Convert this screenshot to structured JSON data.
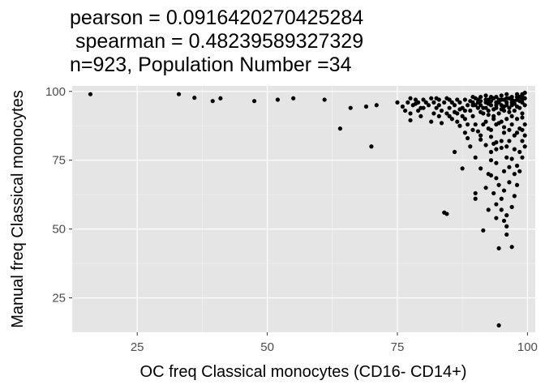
{
  "chart_data": {
    "type": "scatter",
    "title_lines": [
      "pearson = 0.0916420270425284",
      " spearman = 0.48239589327329",
      "n=923, Population Number =34"
    ],
    "xlabel": "OC freq Classical monocytes (CD16- CD14+)",
    "ylabel": "Manual freq Classical monocytes",
    "xlim": [
      12.5,
      101.5
    ],
    "ylim": [
      12.5,
      102
    ],
    "x_ticks": [
      25,
      50,
      75,
      100
    ],
    "y_ticks": [
      25,
      50,
      75,
      100
    ],
    "grid": true,
    "point_color": "#000000",
    "panel_background": "#e5e5e5",
    "points": [
      [
        16,
        99
      ],
      [
        33,
        99
      ],
      [
        36,
        97.7
      ],
      [
        39.5,
        96.5
      ],
      [
        41,
        97.5
      ],
      [
        47.5,
        96.5
      ],
      [
        52,
        97
      ],
      [
        55,
        97.5
      ],
      [
        61,
        97
      ],
      [
        64,
        86.5
      ],
      [
        66,
        94
      ],
      [
        69,
        94.5
      ],
      [
        70,
        80
      ],
      [
        71,
        95
      ],
      [
        75,
        96
      ],
      [
        76.5,
        93
      ],
      [
        77,
        96
      ],
      [
        77.5,
        89.5
      ],
      [
        77.5,
        92
      ],
      [
        78,
        95
      ],
      [
        78.5,
        97
      ],
      [
        79,
        93
      ],
      [
        79,
        96
      ],
      [
        79.5,
        91
      ],
      [
        80,
        94
      ],
      [
        80.5,
        96
      ],
      [
        81,
        95
      ],
      [
        81.5,
        89
      ],
      [
        82,
        92
      ],
      [
        82,
        96
      ],
      [
        82.5,
        94
      ],
      [
        83,
        91
      ],
      [
        83,
        95
      ],
      [
        83.5,
        88.5
      ],
      [
        83.5,
        93
      ],
      [
        84,
        96
      ],
      [
        84,
        56
      ],
      [
        84.5,
        55.5
      ],
      [
        84.5,
        92
      ],
      [
        85,
        94
      ],
      [
        85,
        97
      ],
      [
        85.5,
        90
      ],
      [
        86,
        95
      ],
      [
        86,
        78
      ],
      [
        86.5,
        92
      ],
      [
        87,
        87.5
      ],
      [
        87,
        96
      ],
      [
        87.5,
        72
      ],
      [
        87.5,
        94
      ],
      [
        88,
        90
      ],
      [
        88,
        97
      ],
      [
        88.5,
        83
      ],
      [
        88.5,
        95
      ],
      [
        89,
        93
      ],
      [
        89,
        80
      ],
      [
        89.5,
        91
      ],
      [
        89.5,
        96
      ],
      [
        89.5,
        98
      ],
      [
        90,
        88
      ],
      [
        90,
        63
      ],
      [
        90,
        61
      ],
      [
        90.5,
        94
      ],
      [
        90.5,
        97
      ],
      [
        91,
        84
      ],
      [
        91,
        95
      ],
      [
        91,
        98
      ],
      [
        91.5,
        92
      ],
      [
        91.5,
        49.5
      ],
      [
        92,
        89
      ],
      [
        92,
        96
      ],
      [
        92,
        98.5
      ],
      [
        92.5,
        70
      ],
      [
        92.5,
        57
      ],
      [
        92.5,
        93
      ],
      [
        92.5,
        97
      ],
      [
        93,
        86
      ],
      [
        93,
        95
      ],
      [
        93,
        78
      ],
      [
        93,
        69.5
      ],
      [
        93.5,
        91
      ],
      [
        93.5,
        97.5
      ],
      [
        93.5,
        81
      ],
      [
        94,
        94
      ],
      [
        94,
        98
      ],
      [
        94,
        88
      ],
      [
        94,
        54
      ],
      [
        94,
        74
      ],
      [
        94,
        79
      ],
      [
        94.5,
        15
      ],
      [
        94.5,
        92
      ],
      [
        94.5,
        96
      ],
      [
        94.5,
        43
      ],
      [
        94.5,
        66
      ],
      [
        95,
        89
      ],
      [
        95,
        95
      ],
      [
        95,
        98.5
      ],
      [
        95,
        61
      ],
      [
        95,
        82
      ],
      [
        95.5,
        93
      ],
      [
        95.5,
        97
      ],
      [
        95.5,
        85
      ],
      [
        95.5,
        53
      ],
      [
        96,
        90
      ],
      [
        96,
        96
      ],
      [
        96,
        99
      ],
      [
        96,
        55
      ],
      [
        96,
        48
      ],
      [
        96,
        76
      ],
      [
        96.5,
        94
      ],
      [
        96.5,
        97.5
      ],
      [
        96.5,
        82
      ],
      [
        97,
        91
      ],
      [
        97,
        95
      ],
      [
        97,
        98
      ],
      [
        97,
        43.5
      ],
      [
        97,
        88
      ],
      [
        97.5,
        93
      ],
      [
        97.5,
        96.5
      ],
      [
        97.5,
        79
      ],
      [
        97.5,
        62
      ],
      [
        98,
        90
      ],
      [
        98,
        97
      ],
      [
        98,
        99
      ],
      [
        98,
        85
      ],
      [
        98.5,
        94
      ],
      [
        98.5,
        98
      ],
      [
        98.5,
        78
      ],
      [
        99,
        92
      ],
      [
        99,
        96
      ],
      [
        99,
        99
      ],
      [
        99,
        82
      ],
      [
        99.5,
        95
      ],
      [
        99.5,
        99.5
      ],
      [
        99.5,
        88
      ],
      [
        90.5,
        96
      ],
      [
        91.5,
        94
      ],
      [
        92.5,
        95.5
      ],
      [
        93.5,
        93.5
      ],
      [
        94.5,
        97
      ],
      [
        95.5,
        94.5
      ],
      [
        96.5,
        92.5
      ],
      [
        97.5,
        95.5
      ],
      [
        98.5,
        96.5
      ],
      [
        99.5,
        97.5
      ],
      [
        91,
        92.5
      ],
      [
        92,
        94
      ],
      [
        93,
        96.5
      ],
      [
        94,
        95
      ],
      [
        95,
        93.5
      ],
      [
        96,
        97.5
      ],
      [
        97,
        96
      ],
      [
        98,
        94.5
      ],
      [
        99,
        98.5
      ],
      [
        90,
        95
      ],
      [
        88,
        93
      ],
      [
        86.5,
        97
      ],
      [
        85.5,
        96
      ],
      [
        84.5,
        97.5
      ],
      [
        83,
        97
      ],
      [
        82.5,
        97.5
      ],
      [
        81.5,
        97.5
      ],
      [
        80,
        97
      ],
      [
        79.5,
        94
      ],
      [
        78.5,
        95.5
      ],
      [
        77.5,
        97.5
      ],
      [
        76,
        94.5
      ],
      [
        89,
        96.5
      ],
      [
        89.5,
        95
      ],
      [
        90,
        97.5
      ],
      [
        91,
        96.5
      ],
      [
        92,
        97
      ],
      [
        93,
        98
      ],
      [
        94,
        96
      ],
      [
        95,
        97
      ],
      [
        96,
        95
      ],
      [
        97,
        97
      ],
      [
        98,
        98
      ],
      [
        99,
        97
      ],
      [
        92.5,
        91.5
      ],
      [
        93.5,
        90
      ],
      [
        94.5,
        88.5
      ],
      [
        95.5,
        87
      ],
      [
        96.5,
        86
      ],
      [
        97.5,
        84
      ],
      [
        98.5,
        86.5
      ],
      [
        99,
        90.5
      ],
      [
        91.5,
        88
      ],
      [
        92.5,
        86.5
      ],
      [
        93,
        83.5
      ],
      [
        94,
        81.5
      ],
      [
        95,
        79.5
      ],
      [
        96,
        80
      ],
      [
        97,
        75.5
      ],
      [
        98,
        73
      ],
      [
        97.5,
        70
      ],
      [
        96.5,
        72.5
      ],
      [
        95.5,
        71
      ],
      [
        94,
        68.5
      ],
      [
        93,
        75
      ],
      [
        92,
        80.5
      ],
      [
        91,
        82.5
      ],
      [
        90.5,
        85.5
      ],
      [
        89.5,
        86
      ],
      [
        88.5,
        88
      ],
      [
        87.5,
        91
      ],
      [
        87,
        93.5
      ],
      [
        86,
        92.5
      ],
      [
        85,
        91
      ],
      [
        86.5,
        89
      ],
      [
        88,
        85
      ],
      [
        94,
        59
      ],
      [
        95,
        57
      ],
      [
        96,
        51
      ],
      [
        95.5,
        64
      ],
      [
        93.5,
        63
      ],
      [
        92,
        65
      ],
      [
        91,
        72
      ],
      [
        90,
        76
      ],
      [
        96.5,
        67
      ],
      [
        97,
        58
      ],
      [
        98,
        66
      ],
      [
        98.5,
        71
      ],
      [
        99,
        76
      ],
      [
        99.5,
        80
      ],
      [
        99.5,
        84
      ],
      [
        99,
        86
      ]
    ]
  }
}
